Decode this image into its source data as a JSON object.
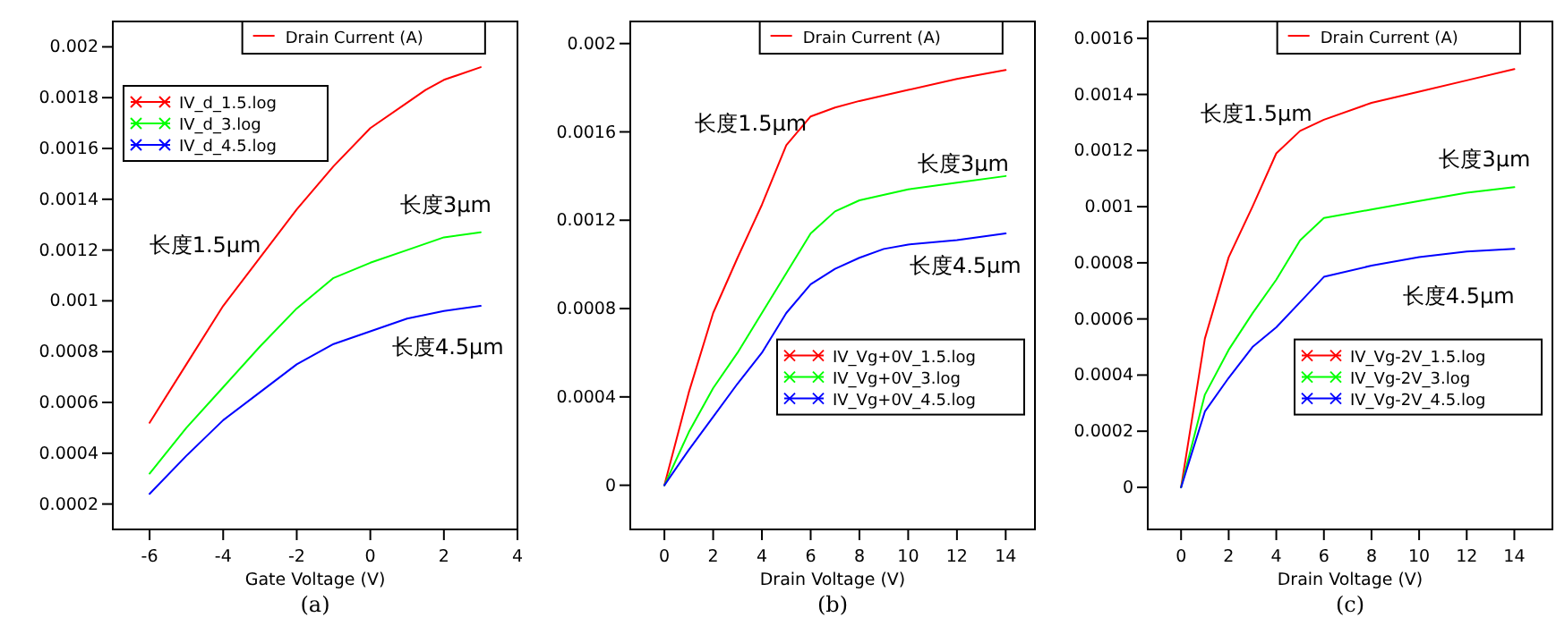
{
  "chart_data": [
    {
      "type": "line",
      "xlabel": "Gate Voltage (V)",
      "ylabel": "Drain Current (A)",
      "xlim": [
        -7,
        4
      ],
      "xticks": [
        -6,
        -4,
        -2,
        0,
        2,
        4
      ],
      "ylim": [
        0.0001,
        0.0021
      ],
      "yticks": [
        0.0002,
        0.0004,
        0.0006,
        0.0008,
        0.001,
        0.0012,
        0.0014,
        0.0016,
        0.0018,
        0.002
      ],
      "legend": "top left",
      "series": [
        {
          "name": "IV_d_1.5.log",
          "color": "#ff0000",
          "x": [
            -6,
            -5,
            -4,
            -3,
            -2,
            -1,
            0,
            1,
            1.5,
            2,
            3
          ],
          "values": [
            0.00052,
            0.00075,
            0.00098,
            0.00117,
            0.00136,
            0.00153,
            0.00168,
            0.00178,
            0.00183,
            0.00187,
            0.00192
          ]
        },
        {
          "name": "IV_d_3.log",
          "color": "#00ff00",
          "x": [
            -6,
            -5,
            -4,
            -3,
            -2,
            -1,
            0,
            1,
            2,
            3
          ],
          "values": [
            0.00032,
            0.0005,
            0.00066,
            0.00082,
            0.00097,
            0.00109,
            0.00115,
            0.0012,
            0.00125,
            0.00127
          ]
        },
        {
          "name": "IV_d_4.5.log",
          "color": "#0000ff",
          "x": [
            -6,
            -5,
            -4,
            -3,
            -2,
            -1,
            0,
            1,
            2,
            3
          ],
          "values": [
            0.00024,
            0.00039,
            0.00053,
            0.00064,
            0.00075,
            0.00083,
            0.00088,
            0.00093,
            0.00096,
            0.00098
          ]
        }
      ],
      "annotations": [
        "长度1.5μm",
        "长度3μm",
        "长度4.5μm",
        "(a)"
      ]
    },
    {
      "type": "line",
      "xlabel": "Drain Voltage (V)",
      "ylabel": "Drain Current (A)",
      "xlim": [
        -1.4,
        15.2
      ],
      "xticks": [
        0,
        2,
        4,
        6,
        8,
        10,
        12,
        14
      ],
      "ylim": [
        -0.0002,
        0.0021
      ],
      "yticks": [
        0,
        0.0004,
        0.0008,
        0.0012,
        0.0016,
        0.002
      ],
      "legend": "bottom right",
      "series": [
        {
          "name": "IV_Vg+0V_1.5.log",
          "color": "#ff0000",
          "x": [
            0,
            1,
            2,
            3,
            4,
            5,
            6,
            7,
            8,
            10,
            12,
            14
          ],
          "values": [
            0,
            0.00042,
            0.00078,
            0.00103,
            0.00127,
            0.00154,
            0.00167,
            0.00171,
            0.00174,
            0.00179,
            0.00184,
            0.00188
          ]
        },
        {
          "name": "IV_Vg+0V_3.log",
          "color": "#00ff00",
          "x": [
            0,
            1,
            2,
            3,
            4,
            5,
            6,
            7,
            8,
            10,
            12,
            14
          ],
          "values": [
            0,
            0.00024,
            0.00044,
            0.0006,
            0.00078,
            0.00096,
            0.00114,
            0.00124,
            0.00129,
            0.00134,
            0.00137,
            0.0014
          ]
        },
        {
          "name": "IV_Vg+0V_4.5.log",
          "color": "#0000ff",
          "x": [
            0,
            1,
            2,
            3,
            4,
            5,
            6,
            7,
            8,
            9,
            10,
            12,
            14
          ],
          "values": [
            0,
            0.00016,
            0.00031,
            0.00046,
            0.0006,
            0.00078,
            0.00091,
            0.00098,
            0.00103,
            0.00107,
            0.00109,
            0.00111,
            0.00114
          ]
        }
      ],
      "annotations": [
        "长度1.5μm",
        "长度3μm",
        "长度4.5μm",
        "(b)"
      ]
    },
    {
      "type": "line",
      "xlabel": "Drain Voltage (V)",
      "ylabel": "Drain Current (A)",
      "xlim": [
        -1.4,
        15.6
      ],
      "xticks": [
        0,
        2,
        4,
        6,
        8,
        10,
        12,
        14
      ],
      "ylim": [
        -0.00015,
        0.00166
      ],
      "yticks": [
        0,
        0.0002,
        0.0004,
        0.0006,
        0.0008,
        0.001,
        0.0012,
        0.0014,
        0.0016
      ],
      "legend": "bottom right",
      "series": [
        {
          "name": "IV_Vg-2V_1.5.log",
          "color": "#ff0000",
          "x": [
            0,
            1,
            2,
            3,
            4,
            5,
            6,
            8,
            10,
            12,
            14
          ],
          "values": [
            0,
            0.00053,
            0.00082,
            0.001,
            0.00119,
            0.00127,
            0.00131,
            0.00137,
            0.00141,
            0.00145,
            0.00149
          ]
        },
        {
          "name": "IV_Vg-2V_3.log",
          "color": "#00ff00",
          "x": [
            0,
            1,
            2,
            3,
            4,
            5,
            6,
            8,
            10,
            12,
            14
          ],
          "values": [
            0,
            0.00033,
            0.00049,
            0.00062,
            0.00074,
            0.00088,
            0.00096,
            0.00099,
            0.00102,
            0.00105,
            0.00107
          ]
        },
        {
          "name": "IV_Vg-2V_4.5.log",
          "color": "#0000ff",
          "x": [
            0,
            1,
            2,
            3,
            4,
            5,
            6,
            8,
            10,
            12,
            14
          ],
          "values": [
            0,
            0.00027,
            0.00039,
            0.0005,
            0.00057,
            0.00066,
            0.00075,
            0.00079,
            0.00082,
            0.00084,
            0.00085
          ]
        }
      ],
      "annotations": [
        "长度1.5μm",
        "长度3μm",
        "长度4.5μm",
        "(c)"
      ]
    }
  ]
}
